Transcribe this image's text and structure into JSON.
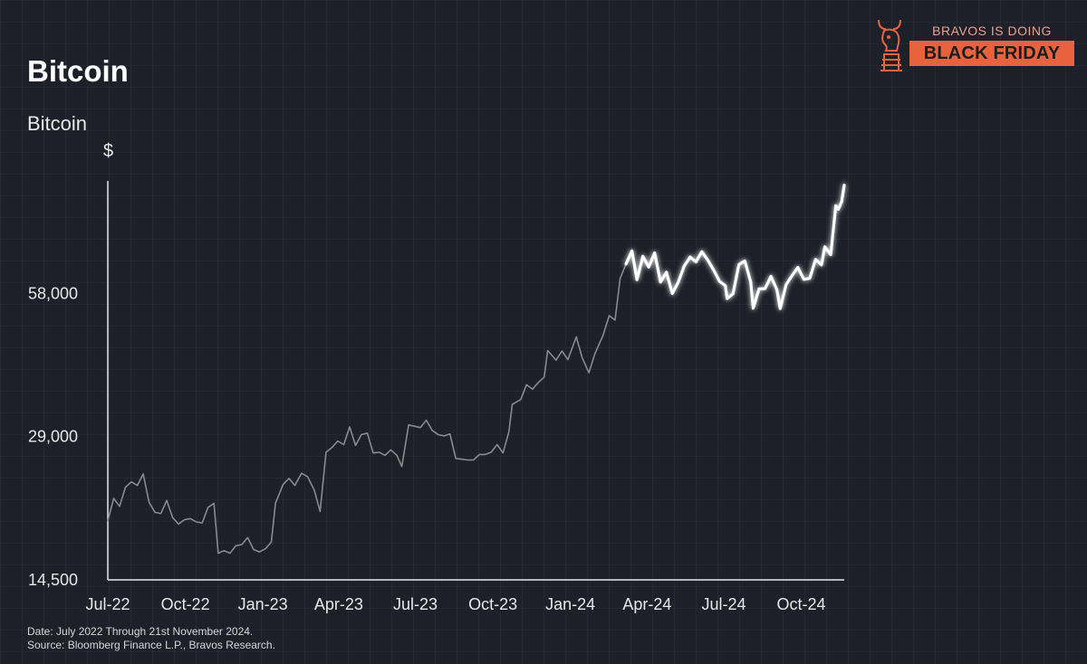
{
  "header": {
    "title": "Bitcoin",
    "subtitle": "Bitcoin",
    "unit": "$"
  },
  "badge": {
    "top_text": "BRAVOS IS DOING",
    "main_text": "BLACK FRIDAY",
    "logo_icon": "chess-knight-bull-icon",
    "accent_color": "#e8633d"
  },
  "footer": {
    "line1": "Date: July 2022 Through 21st November 2024.",
    "line2": "Source: Bloomberg Finance L.P., Bravos Research."
  },
  "colors": {
    "background": "#1d2028",
    "early_series": "#8a8a8e",
    "highlight_series": "#ffffff"
  },
  "chart_data": {
    "type": "line",
    "title": "Bitcoin",
    "ylabel": "$",
    "y_scale": "log",
    "ylim": [
      14500,
      100000
    ],
    "y_ticks": [
      {
        "value": 14500,
        "label": "14,500"
      },
      {
        "value": 29000,
        "label": "29,000"
      },
      {
        "value": 58000,
        "label": "58,000"
      }
    ],
    "x_ticks": [
      {
        "value": "2022-07-01",
        "label": "Jul-22"
      },
      {
        "value": "2022-10-01",
        "label": "Oct-22"
      },
      {
        "value": "2023-01-01",
        "label": "Jan-23"
      },
      {
        "value": "2023-04-01",
        "label": "Apr-23"
      },
      {
        "value": "2023-07-01",
        "label": "Jul-23"
      },
      {
        "value": "2023-10-01",
        "label": "Oct-23"
      },
      {
        "value": "2024-01-01",
        "label": "Jan-24"
      },
      {
        "value": "2024-04-01",
        "label": "Apr-24"
      },
      {
        "value": "2024-07-01",
        "label": "Jul-24"
      },
      {
        "value": "2024-10-01",
        "label": "Oct-24"
      }
    ],
    "xlim": [
      "2022-07-01",
      "2024-11-21"
    ],
    "grid": false,
    "series": [
      {
        "style": "dim",
        "points": [
          [
            "2022-07-01",
            19300
          ],
          [
            "2022-07-08",
            21500
          ],
          [
            "2022-07-15",
            20700
          ],
          [
            "2022-07-22",
            22700
          ],
          [
            "2022-07-29",
            23300
          ],
          [
            "2022-08-05",
            22900
          ],
          [
            "2022-08-12",
            24200
          ],
          [
            "2022-08-19",
            21100
          ],
          [
            "2022-08-26",
            20100
          ],
          [
            "2022-09-02",
            20000
          ],
          [
            "2022-09-09",
            21300
          ],
          [
            "2022-09-16",
            19600
          ],
          [
            "2022-09-23",
            19000
          ],
          [
            "2022-09-30",
            19400
          ],
          [
            "2022-10-07",
            19500
          ],
          [
            "2022-10-14",
            19200
          ],
          [
            "2022-10-21",
            19100
          ],
          [
            "2022-10-28",
            20600
          ],
          [
            "2022-11-04",
            21000
          ],
          [
            "2022-11-09",
            16500
          ],
          [
            "2022-11-16",
            16700
          ],
          [
            "2022-11-23",
            16500
          ],
          [
            "2022-11-30",
            17100
          ],
          [
            "2022-12-07",
            17200
          ],
          [
            "2022-12-14",
            17800
          ],
          [
            "2022-12-21",
            16800
          ],
          [
            "2022-12-28",
            16600
          ],
          [
            "2023-01-04",
            16850
          ],
          [
            "2023-01-11",
            17400
          ],
          [
            "2023-01-16",
            21000
          ],
          [
            "2023-01-25",
            23000
          ],
          [
            "2023-02-01",
            23700
          ],
          [
            "2023-02-08",
            22900
          ],
          [
            "2023-02-16",
            24300
          ],
          [
            "2023-02-23",
            23900
          ],
          [
            "2023-03-03",
            22400
          ],
          [
            "2023-03-10",
            20200
          ],
          [
            "2023-03-17",
            26900
          ],
          [
            "2023-03-24",
            27500
          ],
          [
            "2023-03-31",
            28400
          ],
          [
            "2023-04-07",
            27900
          ],
          [
            "2023-04-14",
            30400
          ],
          [
            "2023-04-21",
            27800
          ],
          [
            "2023-04-28",
            29300
          ],
          [
            "2023-05-05",
            29500
          ],
          [
            "2023-05-12",
            26800
          ],
          [
            "2023-05-19",
            26900
          ],
          [
            "2023-05-26",
            26500
          ],
          [
            "2023-06-02",
            27200
          ],
          [
            "2023-06-09",
            26500
          ],
          [
            "2023-06-15",
            25100
          ],
          [
            "2023-06-23",
            30700
          ],
          [
            "2023-06-30",
            30500
          ],
          [
            "2023-07-07",
            30300
          ],
          [
            "2023-07-14",
            31400
          ],
          [
            "2023-07-21",
            29900
          ],
          [
            "2023-07-28",
            29300
          ],
          [
            "2023-08-04",
            29100
          ],
          [
            "2023-08-11",
            29400
          ],
          [
            "2023-08-18",
            26100
          ],
          [
            "2023-08-25",
            26000
          ],
          [
            "2023-09-01",
            25900
          ],
          [
            "2023-09-08",
            25900
          ],
          [
            "2023-09-15",
            26600
          ],
          [
            "2023-09-22",
            26600
          ],
          [
            "2023-09-29",
            26900
          ],
          [
            "2023-10-06",
            27900
          ],
          [
            "2023-10-13",
            26800
          ],
          [
            "2023-10-20",
            29700
          ],
          [
            "2023-10-24",
            33900
          ],
          [
            "2023-11-03",
            34700
          ],
          [
            "2023-11-10",
            37300
          ],
          [
            "2023-11-17",
            36500
          ],
          [
            "2023-11-24",
            37700
          ],
          [
            "2023-12-01",
            38700
          ],
          [
            "2023-12-05",
            44000
          ],
          [
            "2023-12-15",
            42000
          ],
          [
            "2023-12-22",
            43900
          ],
          [
            "2023-12-29",
            42100
          ],
          [
            "2024-01-08",
            47000
          ],
          [
            "2024-01-15",
            42500
          ],
          [
            "2024-01-23",
            39500
          ],
          [
            "2024-01-30",
            43300
          ],
          [
            "2024-02-09",
            47500
          ],
          [
            "2024-02-16",
            52100
          ],
          [
            "2024-02-23",
            51000
          ],
          [
            "2024-02-29",
            62400
          ],
          [
            "2024-03-07",
            66900
          ]
        ]
      },
      {
        "style": "highlight",
        "points": [
          [
            "2024-03-07",
            66900
          ],
          [
            "2024-03-14",
            71300
          ],
          [
            "2024-03-20",
            62000
          ],
          [
            "2024-03-27",
            69400
          ],
          [
            "2024-04-03",
            65900
          ],
          [
            "2024-04-10",
            70600
          ],
          [
            "2024-04-17",
            61300
          ],
          [
            "2024-04-24",
            64300
          ],
          [
            "2024-05-01",
            58000
          ],
          [
            "2024-05-08",
            61200
          ],
          [
            "2024-05-15",
            66200
          ],
          [
            "2024-05-22",
            69200
          ],
          [
            "2024-05-29",
            67600
          ],
          [
            "2024-06-05",
            71000
          ],
          [
            "2024-06-12",
            68200
          ],
          [
            "2024-06-19",
            65000
          ],
          [
            "2024-06-26",
            61500
          ],
          [
            "2024-07-03",
            60200
          ],
          [
            "2024-07-05",
            56600
          ],
          [
            "2024-07-12",
            57900
          ],
          [
            "2024-07-19",
            66700
          ],
          [
            "2024-07-26",
            67900
          ],
          [
            "2024-08-02",
            61400
          ],
          [
            "2024-08-05",
            54000
          ],
          [
            "2024-08-12",
            59300
          ],
          [
            "2024-08-19",
            59400
          ],
          [
            "2024-08-26",
            63000
          ],
          [
            "2024-09-02",
            59100
          ],
          [
            "2024-09-06",
            53900
          ],
          [
            "2024-09-13",
            60500
          ],
          [
            "2024-09-20",
            63200
          ],
          [
            "2024-09-27",
            65800
          ],
          [
            "2024-10-04",
            62100
          ],
          [
            "2024-10-11",
            62400
          ],
          [
            "2024-10-18",
            68400
          ],
          [
            "2024-10-25",
            66600
          ],
          [
            "2024-10-29",
            72700
          ],
          [
            "2024-11-05",
            70000
          ],
          [
            "2024-11-07",
            75900
          ],
          [
            "2024-11-11",
            88700
          ],
          [
            "2024-11-14",
            87200
          ],
          [
            "2024-11-18",
            90500
          ],
          [
            "2024-11-21",
            98000
          ]
        ]
      }
    ]
  }
}
